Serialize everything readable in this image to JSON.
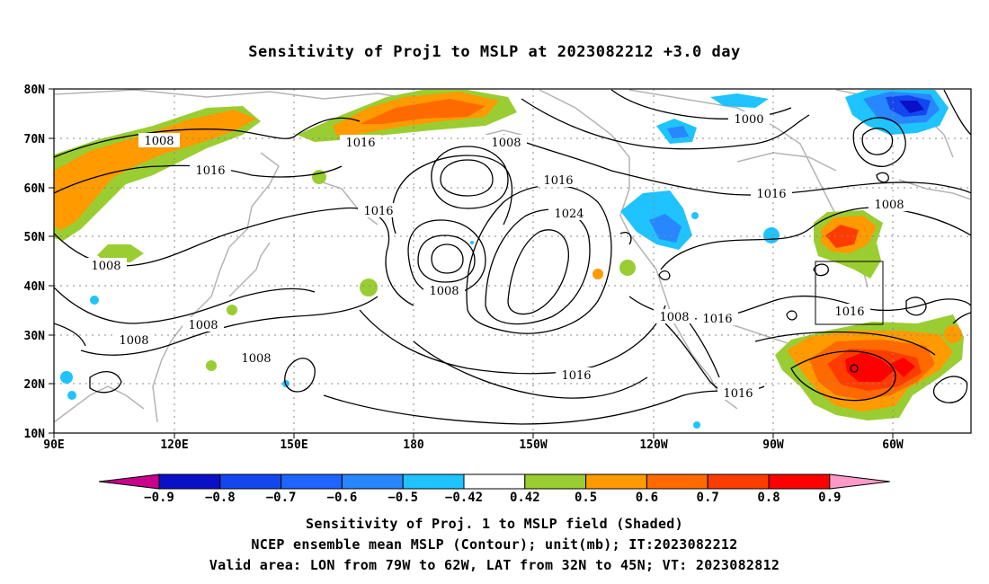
{
  "title": "Sensitivity of Proj1 to MSLP at 2023082212 +3.0 day",
  "lat_labels": [
    "80N",
    "70N",
    "60N",
    "50N",
    "40N",
    "30N",
    "20N",
    "10N"
  ],
  "lon_labels": [
    "90E",
    "120E",
    "150E",
    "180",
    "150W",
    "120W",
    "90W",
    "60W"
  ],
  "colorbar": {
    "labels": [
      "-0.9",
      "-0.8",
      "-0.7",
      "-0.6",
      "-0.5",
      "-0.42",
      "0.42",
      "0.5",
      "0.6",
      "0.7",
      "0.8",
      "0.9"
    ],
    "colors": [
      "#c8008c",
      "#0a10c8",
      "#1446f0",
      "#1e64ff",
      "#2887ff",
      "#1ec3ff",
      "#ffffff",
      "#9acd32",
      "#ff9a00",
      "#ff6a00",
      "#ff3c00",
      "#ff0000",
      "#ff9ac8"
    ]
  },
  "contour_labels": [
    {
      "id": "c1",
      "text": "1008"
    },
    {
      "id": "c2",
      "text": "1016"
    },
    {
      "id": "c3",
      "text": "1016"
    },
    {
      "id": "c4",
      "text": "1008"
    },
    {
      "id": "c5",
      "text": "1016"
    },
    {
      "id": "c6",
      "text": "1024"
    },
    {
      "id": "c7",
      "text": "1000"
    },
    {
      "id": "c8",
      "text": "1016"
    },
    {
      "id": "c9",
      "text": "1008"
    },
    {
      "id": "c10",
      "text": "1016"
    },
    {
      "id": "c11",
      "text": "1008"
    },
    {
      "id": "c12",
      "text": "1008"
    },
    {
      "id": "c13",
      "text": "1008"
    },
    {
      "id": "c14",
      "text": "1008"
    },
    {
      "id": "c15",
      "text": "1016"
    },
    {
      "id": "c16",
      "text": "1016"
    },
    {
      "id": "c17",
      "text": "1016"
    },
    {
      "id": "c18",
      "text": "1008"
    },
    {
      "id": "c19",
      "text": "1016"
    }
  ],
  "captions": [
    "Sensitivity of Proj. 1 to MSLP field (Shaded)",
    "NCEP ensemble mean MSLP (Contour); unit(mb); IT:2023082212",
    "Valid area: LON from 79W to 62W, LAT from 32N to 45N; VT: 2023082812"
  ]
}
